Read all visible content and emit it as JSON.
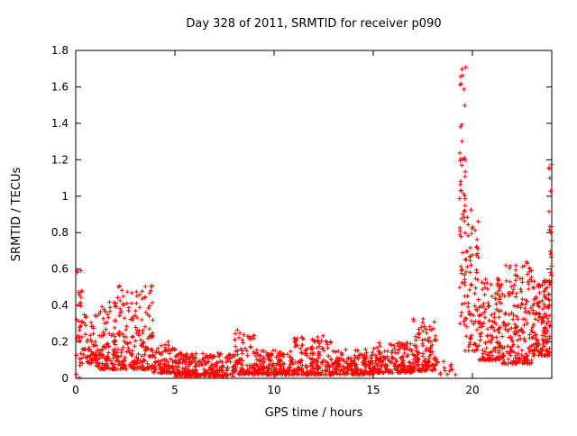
{
  "chart_data": {
    "type": "scatter",
    "title": "Day 328 of 2011, SRMTID for receiver p090",
    "xlabel": "GPS time / hours",
    "ylabel": "SRMTID / TECUs",
    "xlim": [
      0,
      24
    ],
    "ylim": [
      0,
      1.8
    ],
    "xticks": [
      "0",
      "5",
      "10",
      "15",
      "20"
    ],
    "xtick_values": [
      0,
      5,
      10,
      15,
      20
    ],
    "yticks": [
      "0",
      "0.2",
      "0.4",
      "0.6",
      "0.8",
      "1",
      "1.2",
      "1.4",
      "1.6",
      "1.8"
    ],
    "ytick_values": [
      0,
      0.2,
      0.4,
      0.6,
      0.8,
      1.0,
      1.2,
      1.4,
      1.6,
      1.8
    ],
    "grid": false,
    "legend": "none",
    "marker": "plus",
    "marker_color": "#ff0000",
    "border_color": "#000000",
    "series_name": "SRMTID",
    "distribution_note": "Dense low band ~0-0.2 TECUs across the day; elevated scatter 0-4 h (up to ~0.6); quiet 5-18 h; sparse gap 18.2-19.3 h; strong spike 19.3-20.3 h reaching ~1.7; moderate 0.1-0.65 band 20-24 h; end spike near 24 h reaching ~1.2",
    "segments_format": [
      "x_start_hours",
      "x_end_hours",
      "num_points",
      "y_min_TECUs",
      "y_max_TECUs",
      "low_bias_exponent"
    ],
    "segments": [
      [
        0.0,
        0.3,
        25,
        0.0,
        0.62,
        1.0
      ],
      [
        0.1,
        0.35,
        8,
        0.4,
        0.6,
        1.0
      ],
      [
        0.3,
        1.0,
        55,
        0.08,
        0.35,
        1.6
      ],
      [
        1.0,
        2.0,
        110,
        0.05,
        0.45,
        2.2
      ],
      [
        2.0,
        3.1,
        120,
        0.05,
        0.52,
        2.0
      ],
      [
        3.1,
        3.9,
        90,
        0.05,
        0.52,
        1.8
      ],
      [
        3.9,
        5.0,
        90,
        0.03,
        0.2,
        2.0
      ],
      [
        5.0,
        8.0,
        280,
        0.01,
        0.14,
        1.8
      ],
      [
        8.0,
        9.0,
        95,
        0.02,
        0.27,
        2.0
      ],
      [
        9.0,
        11.0,
        190,
        0.02,
        0.16,
        1.8
      ],
      [
        11.0,
        12.0,
        95,
        0.02,
        0.23,
        2.0
      ],
      [
        12.0,
        13.0,
        95,
        0.02,
        0.24,
        2.0
      ],
      [
        13.0,
        15.0,
        190,
        0.02,
        0.16,
        1.8
      ],
      [
        15.0,
        17.0,
        190,
        0.03,
        0.2,
        1.8
      ],
      [
        17.0,
        18.2,
        120,
        0.04,
        0.33,
        1.8
      ],
      [
        18.2,
        19.3,
        14,
        0.02,
        0.12,
        1.5
      ],
      [
        19.35,
        19.65,
        55,
        0.3,
        1.72,
        1.2
      ],
      [
        19.6,
        20.3,
        80,
        0.15,
        0.95,
        1.5
      ],
      [
        20.3,
        21.5,
        150,
        0.1,
        0.55,
        1.8
      ],
      [
        21.5,
        23.0,
        190,
        0.08,
        0.65,
        2.0
      ],
      [
        23.0,
        23.9,
        150,
        0.12,
        0.55,
        1.6
      ],
      [
        23.85,
        24.0,
        28,
        0.2,
        1.18,
        1.2
      ]
    ]
  }
}
